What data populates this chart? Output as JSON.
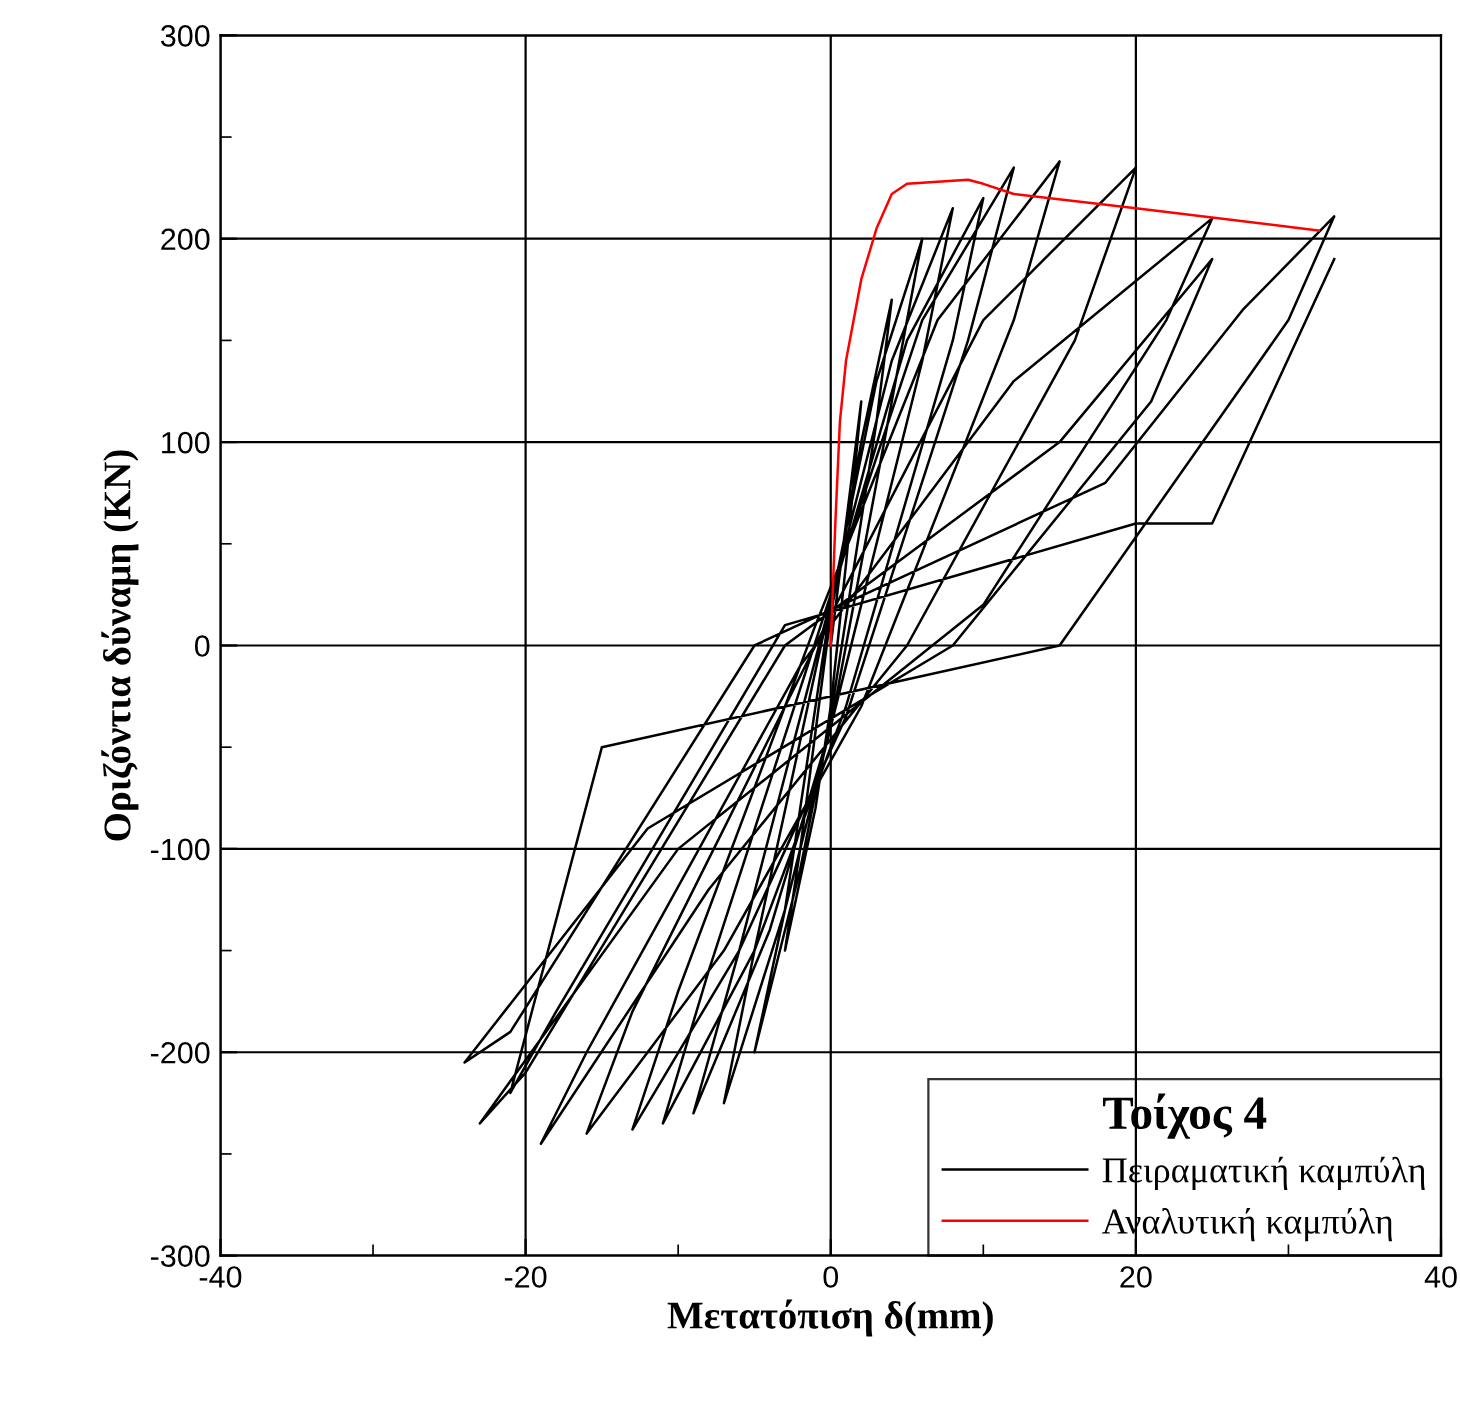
{
  "chart_data": {
    "type": "line",
    "xlabel": "Μετατόπιση δ(mm)",
    "ylabel": "Οριζόντια δύναμη (KN)",
    "legend_title": "Τοίχος 4",
    "xlim": [
      -40,
      40
    ],
    "xticks": [
      -40,
      -20,
      0,
      20,
      40
    ],
    "ylim": [
      -300,
      300
    ],
    "yticks": [
      -300,
      -200,
      -100,
      0,
      100,
      200,
      300
    ],
    "grid": true,
    "legend": "bottom right",
    "marker": "none",
    "line_style": "solid",
    "series": [
      {
        "name": "Πειραματική καμπύλη",
        "color": "#000000",
        "x": [
          0,
          1,
          2,
          1,
          0,
          -1,
          -3,
          -2,
          0,
          2,
          4,
          3,
          0,
          -2,
          -5,
          -3,
          0,
          3,
          6,
          4,
          0,
          -3,
          -7,
          -5,
          0,
          4,
          8,
          6,
          0,
          -4,
          -9,
          -6,
          0,
          5,
          10,
          8,
          1,
          -5,
          -11,
          -8,
          0,
          6,
          12,
          9,
          1,
          -6,
          -13,
          -10,
          -1,
          7,
          15,
          12,
          2,
          -7,
          -16,
          -13,
          0,
          10,
          20,
          16,
          5,
          -8,
          -19,
          -16,
          -2,
          12,
          25,
          22,
          10,
          -10,
          -23,
          -20,
          -3,
          15,
          25,
          21,
          8,
          -12,
          -24,
          -21,
          -5,
          18,
          27,
          33,
          30,
          15,
          -15,
          -21,
          -18,
          -3,
          20,
          25,
          33
        ],
        "values": [
          0,
          60,
          120,
          40,
          -30,
          -80,
          -150,
          -100,
          15,
          100,
          170,
          110,
          -35,
          -110,
          -200,
          -130,
          20,
          130,
          200,
          120,
          -40,
          -130,
          -225,
          -150,
          22,
          140,
          215,
          140,
          -40,
          -140,
          -230,
          -150,
          22,
          150,
          220,
          150,
          -30,
          -150,
          -235,
          -160,
          25,
          160,
          235,
          150,
          -35,
          -150,
          -238,
          -170,
          10,
          160,
          238,
          160,
          -30,
          -150,
          -240,
          -180,
          15,
          160,
          235,
          150,
          0,
          -120,
          -245,
          -200,
          -10,
          130,
          210,
          160,
          20,
          -100,
          -235,
          -210,
          0,
          100,
          190,
          120,
          0,
          -90,
          -205,
          -190,
          0,
          80,
          165,
          211,
          160,
          0,
          -50,
          -220,
          -180,
          10,
          60,
          60,
          190
        ]
      },
      {
        "name": "Αναλυτική καμπύλη",
        "color": "#ff0000",
        "x": [
          0,
          0.3,
          0.6,
          1,
          2,
          3,
          4,
          5,
          7,
          9,
          10,
          12,
          20,
          32
        ],
        "values": [
          0,
          60,
          110,
          140,
          180,
          205,
          222,
          227,
          228,
          229,
          227,
          222,
          215,
          204
        ]
      }
    ]
  }
}
